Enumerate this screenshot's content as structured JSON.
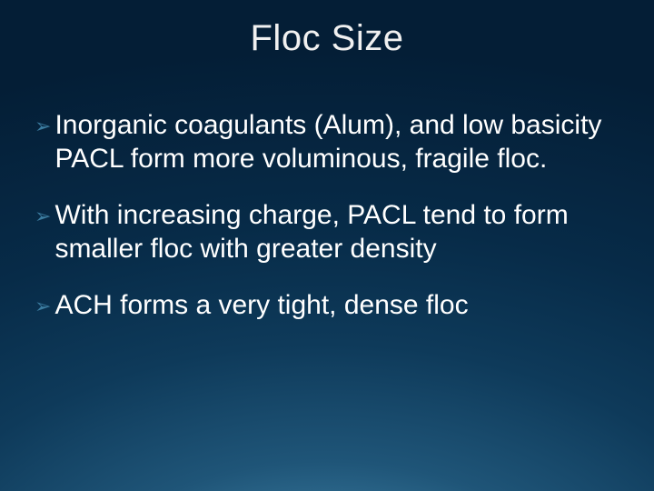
{
  "slide": {
    "title": "Floc Size",
    "title_fontsize": 40,
    "title_color": "#f0f0f0",
    "background_gradient": {
      "type": "radial",
      "stops": [
        "#6aa9c9",
        "#3b7ca0",
        "#1f5578",
        "#0e3a5a",
        "#072b48",
        "#041e36"
      ]
    },
    "bullet_marker": "➢",
    "bullet_marker_color": "#3b7ca0",
    "body_fontsize": 30,
    "body_color": "#ffffff",
    "bullets": [
      {
        "text": "Inorganic coagulants (Alum), and low basicity PACL form more voluminous, fragile floc."
      },
      {
        "text": "With increasing charge, PACL tend to form smaller floc with greater density"
      },
      {
        "text": "ACH forms a very tight, dense floc"
      }
    ]
  }
}
